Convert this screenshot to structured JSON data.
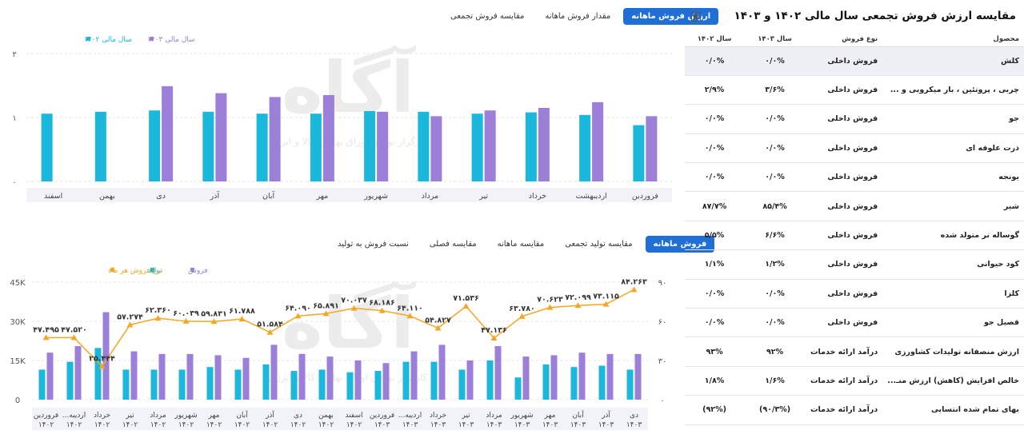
{
  "top_tabs": [
    "ارزش فروش ماهانه",
    "مقدار فروش ماهانه",
    "مقایسه فروش تجمعی"
  ],
  "bottom_tabs": [
    "فروش ماهانه",
    "مقایسه تولید تجمعی",
    "مقایسه ماهانه",
    "مقایسه فصلی",
    "نسبت فروش به تولید"
  ],
  "watermark": {
    "brand": "آگاه",
    "tagline": "کارگزار بورس اوراق بهادار، کالا و انرژی"
  },
  "right_panel": {
    "title": "مقایسه ارزش فروش تجمعی سال مالی ۱۴۰۲ و ۱۴۰۳",
    "excel_icon": "excel-icon",
    "headers": [
      "محصول",
      "نوع فروش",
      "سال ۱۴۰۳",
      "سال ۱۴۰۲"
    ],
    "rows": [
      [
        "کلش",
        "فروش داخلی",
        "۰/۰%",
        "۰/۰%"
      ],
      [
        "چربی ، پروتئین ، بار میکروبی و ...",
        "فروش داخلی",
        "۳/۶%",
        "۲/۹%"
      ],
      [
        "جو",
        "فروش داخلی",
        "۰/۰%",
        "۰/۰%"
      ],
      [
        "ذرت علوفه ای",
        "فروش داخلی",
        "۰/۰%",
        "۰/۰%"
      ],
      [
        "یونجه",
        "فروش داخلی",
        "۰/۰%",
        "۰/۰%"
      ],
      [
        "شیر",
        "فروش داخلی",
        "۸۵/۴%",
        "۸۷/۷%"
      ],
      [
        "گوساله نر متولد شده",
        "فروش داخلی",
        "۶/۶%",
        "۵/۵%"
      ],
      [
        "کود حیوانی",
        "فروش داخلی",
        "۱/۲%",
        "۱/۱%"
      ],
      [
        "کلزا",
        "فروش داخلی",
        "۰/۰%",
        "۰/۰%"
      ],
      [
        "قصیل جو",
        "فروش داخلی",
        "۰/۰%",
        "۰/۰%"
      ],
      [
        "ارزش منصفانه تولیدات کشاورزی",
        "درآمد ارائه خدمات",
        "۹۲%",
        "۹۳%"
      ],
      [
        "خالص افزایش (کاهش) ارزش منـ...",
        "درآمد ارائه خدمات",
        "۱/۶%",
        "۱/۸%"
      ],
      [
        "بهای تمام شده انتسابی",
        "درآمد ارائه خدمات",
        "(۹۰/۳%)",
        "(۹۲%)"
      ]
    ]
  },
  "chart_data": [
    {
      "type": "bar",
      "title": "",
      "categories": [
        "فروردین",
        "اردیبهشت",
        "خرداد",
        "تیر",
        "مرداد",
        "شهریور",
        "مهر",
        "آبان",
        "آذر",
        "دی",
        "بهمن",
        "اسفند"
      ],
      "series": [
        {
          "name": "سال مالی ۱۴۰۲",
          "color": "#1bb8dc",
          "values": [
            0.88,
            1.04,
            1.08,
            1.06,
            1.09,
            1.1,
            1.06,
            1.06,
            1.09,
            1.11,
            1.09,
            1.06
          ]
        },
        {
          "name": "سال مالی ۱۴۰۳",
          "color": "#9b7fd8",
          "values": [
            1.02,
            1.24,
            1.15,
            1.11,
            1.02,
            1.09,
            1.35,
            1.32,
            1.38,
            1.49,
            null,
            null
          ]
        }
      ],
      "y_ticks": [
        "۰",
        "۱",
        "۲"
      ],
      "ylim": [
        0,
        2
      ],
      "legend": "top-left"
    },
    {
      "type": "bar+line",
      "categories": [
        [
          "فروردین",
          "۱۴۰۲"
        ],
        [
          "اردیبه...",
          "۱۴۰۲"
        ],
        [
          "خرداد",
          "۱۴۰۲"
        ],
        [
          "تیر",
          "۱۴۰۲"
        ],
        [
          "مرداد",
          "۱۴۰۲"
        ],
        [
          "شهریور",
          "۱۴۰۲"
        ],
        [
          "مهر",
          "۱۴۰۲"
        ],
        [
          "آبان",
          "۱۴۰۲"
        ],
        [
          "آذر",
          "۱۴۰۲"
        ],
        [
          "دی",
          "۱۴۰۲"
        ],
        [
          "بهمن",
          "۱۴۰۲"
        ],
        [
          "اسفند",
          "۱۴۰۲"
        ],
        [
          "فروردین",
          "۱۴۰۳"
        ],
        [
          "اردیبه...",
          "۱۴۰۳"
        ],
        [
          "خرداد",
          "۱۴۰۳"
        ],
        [
          "تیر",
          "۱۴۰۳"
        ],
        [
          "مرداد",
          "۱۴۰۳"
        ],
        [
          "شهریور",
          "۱۴۰۳"
        ],
        [
          "مهر",
          "۱۴۰۳"
        ],
        [
          "آبان",
          "۱۴۰۳"
        ],
        [
          "آذر",
          "۱۴۰۳"
        ],
        [
          "دی",
          "۱۴۰۳"
        ]
      ],
      "series": [
        {
          "name": "تولید",
          "color": "#1bb8dc",
          "values": [
            11500,
            14500,
            19800,
            11500,
            11500,
            11500,
            12500,
            11500,
            13500,
            11000,
            11500,
            10500,
            11000,
            14500,
            14500,
            11500,
            15000,
            8500,
            13500,
            12500,
            13000,
            11500
          ]
        },
        {
          "name": "فروش",
          "color": "#9b7fd8",
          "values": [
            18000,
            20500,
            33500,
            18500,
            17500,
            17500,
            17000,
            16000,
            21000,
            17500,
            16500,
            15000,
            14000,
            18500,
            21000,
            15000,
            20500,
            16500,
            17000,
            18000,
            17500,
            17500
          ]
        },
        {
          "name": "نرخ فروش هر ماه",
          "color": "#f5a623",
          "axis": "right",
          "values": [
            47.495,
            47.52,
            25.444,
            57.274,
            62.36,
            60.039,
            59.831,
            61.788,
            51.584,
            64.09,
            65.891,
            70.037,
            68.186,
            64.11,
            54.827,
            71.536,
            47.136,
            63.78,
            70.623,
            72.099,
            73.115,
            84.263
          ],
          "labels": [
            "۴۷.۴۹۵",
            "۴۷.۵۲۰",
            "۲۵.۴۴۴",
            "۵۷.۲۷۴",
            "۶۲.۳۶۰",
            "۶۰.۰۳۹",
            "۵۹.۸۳۱",
            "۶۱.۷۸۸",
            "۵۱.۵۸۴",
            "۶۴.۰۹۰",
            "۶۵.۸۹۱",
            "۷۰.۰۳۷",
            "۶۸.۱۸۶",
            "۶۴.۱۱۰",
            "۵۴.۸۲۷",
            "۷۱.۵۳۶",
            "۴۷.۱۳۶",
            "۶۳.۷۸۰",
            "۷۰.۶۲۳",
            "۷۲.۰۹۹",
            "۷۳.۱۱۵",
            "۸۴.۲۶۳"
          ]
        }
      ],
      "y_left_ticks": [
        "0",
        "15K",
        "30K",
        "45K"
      ],
      "ylim_left": [
        0,
        45000
      ],
      "y_right_ticks": [
        "۰",
        "۳۰",
        "۶۰",
        "۹۰"
      ],
      "ylim_right": [
        0,
        90
      ],
      "legend": "top-right"
    }
  ]
}
